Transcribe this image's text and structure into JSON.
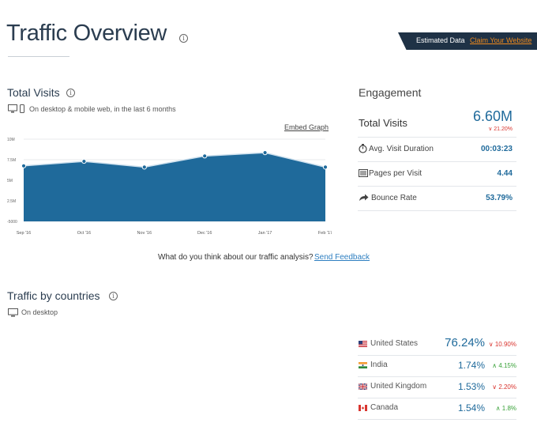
{
  "header": {
    "title": "Traffic Overview",
    "estimated_label": "Estimated Data",
    "claim_link": "Claim Your Website"
  },
  "total_visits": {
    "title": "Total Visits",
    "subtitle": "On desktop & mobile web, in the last 6 months",
    "embed_link": "Embed Graph"
  },
  "chart_data": {
    "type": "area",
    "x": [
      "Sep '16",
      "Oct '16",
      "Nov '16",
      "Dec '16",
      "Jan '17",
      "Feb '17"
    ],
    "y_tick_labels": [
      "10M",
      "7.5M",
      "5M",
      "2.5M",
      "-5000"
    ],
    "series": [
      {
        "values": [
          6.75,
          7.3,
          6.6,
          7.95,
          8.35,
          6.6
        ]
      }
    ],
    "ylim": [
      0,
      10
    ],
    "grid": true,
    "colors": {
      "fill": "#1f6a9b",
      "line": "#cfe1ee",
      "point": "#1f6a9b"
    }
  },
  "feedback": {
    "question": "What do you think about our traffic analysis?",
    "link": "Send Feedback"
  },
  "engagement": {
    "title": "Engagement",
    "total_visits_label": "Total Visits",
    "total_visits_value": "6.60M",
    "total_visits_change": "∨ 21.20%",
    "duration_label": "Avg. Visit Duration",
    "duration_value": "00:03:23",
    "pages_label": "Pages per Visit",
    "pages_value": "4.44",
    "bounce_label": "Bounce Rate",
    "bounce_value": "53.79%"
  },
  "countries": {
    "title": "Traffic by countries",
    "subtitle": "On desktop",
    "rows": [
      {
        "name": "United States",
        "share": "76.24%",
        "change": "∨ 10.90%",
        "dir": "down"
      },
      {
        "name": "India",
        "share": "1.74%",
        "change": "∧ 4.15%",
        "dir": "up"
      },
      {
        "name": "United Kingdom",
        "share": "1.53%",
        "change": "∨ 2.20%",
        "dir": "down"
      },
      {
        "name": "Canada",
        "share": "1.54%",
        "change": "∧ 1.8%",
        "dir": "up"
      }
    ]
  },
  "colors": {
    "accent_blue": "#1f6a9b",
    "banner_dark": "#1f3246",
    "claim_orange": "#f08a1c",
    "up_green": "#3aa23a",
    "down_red": "#d9352f"
  }
}
